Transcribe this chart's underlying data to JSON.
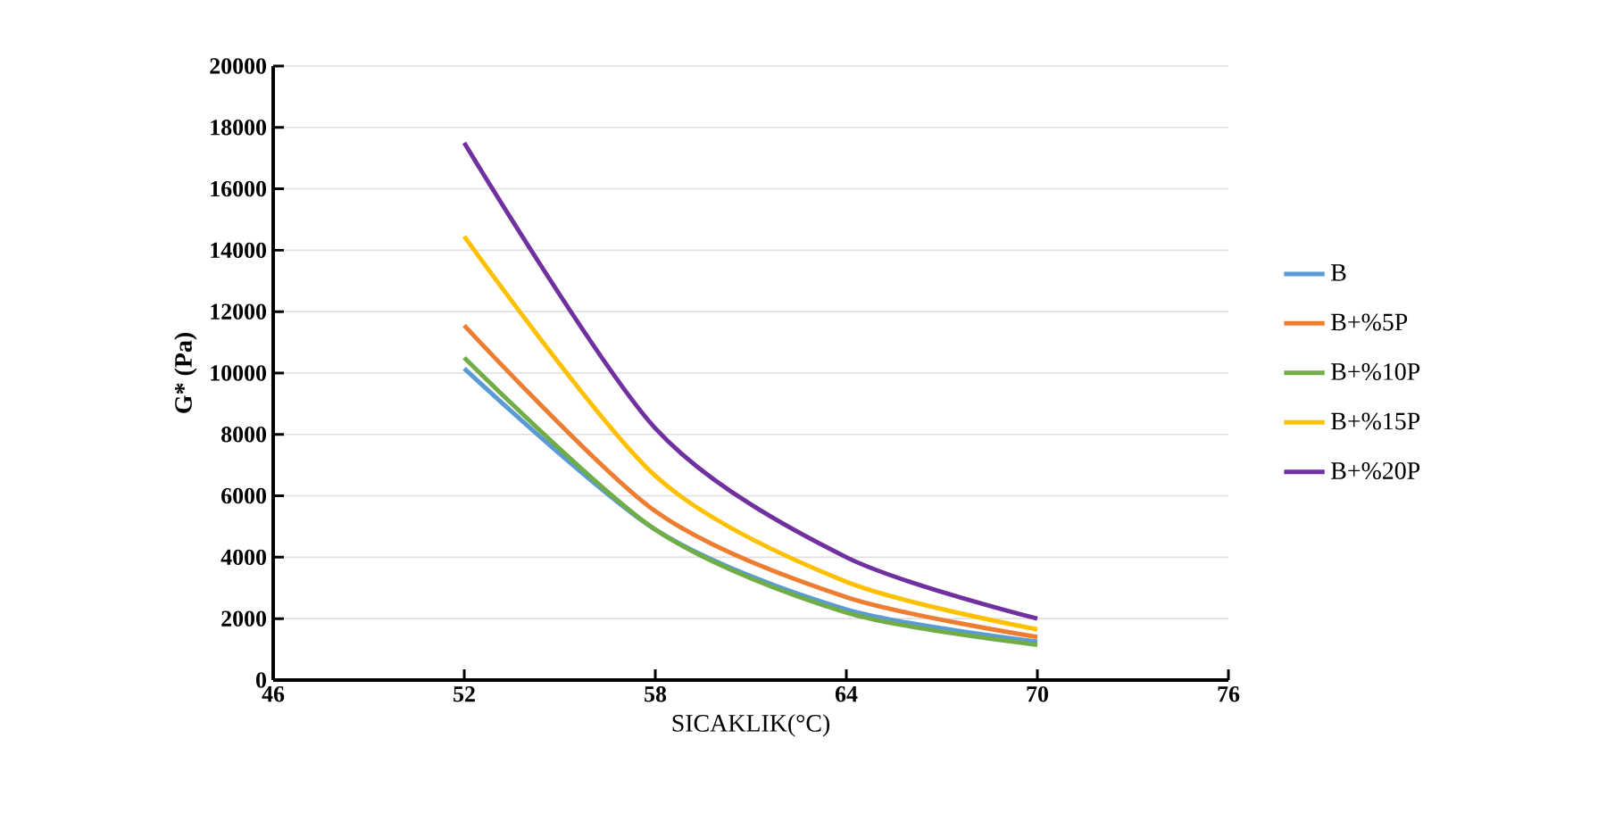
{
  "chart_data": {
    "type": "line",
    "xlabel": "SICAKLIK(°C)",
    "ylabel": "G* (Pa)",
    "x": [
      52,
      58,
      64,
      70
    ],
    "series": [
      {
        "name": "B",
        "color": "#5b9bd5",
        "values": [
          10150,
          4900,
          2300,
          1250
        ]
      },
      {
        "name": "B+%5P",
        "color": "#ed7d31",
        "values": [
          11550,
          5500,
          2700,
          1400
        ]
      },
      {
        "name": "B+%10P",
        "color": "#70ad47",
        "values": [
          10500,
          4900,
          2200,
          1150
        ]
      },
      {
        "name": "B+%15P",
        "color": "#ffc000",
        "values": [
          14450,
          6650,
          3200,
          1650
        ]
      },
      {
        "name": "B+%20P",
        "color": "#7030a0",
        "values": [
          17500,
          8200,
          4000,
          2000
        ]
      }
    ],
    "xlim": [
      46,
      76
    ],
    "xticks": [
      46,
      52,
      58,
      64,
      70,
      76
    ],
    "ylim": [
      0,
      20000
    ],
    "yticks": [
      0,
      2000,
      4000,
      6000,
      8000,
      10000,
      12000,
      14000,
      16000,
      18000,
      20000
    ],
    "grid": "y",
    "legend": "right",
    "marker": "none",
    "line_style": "solid"
  }
}
